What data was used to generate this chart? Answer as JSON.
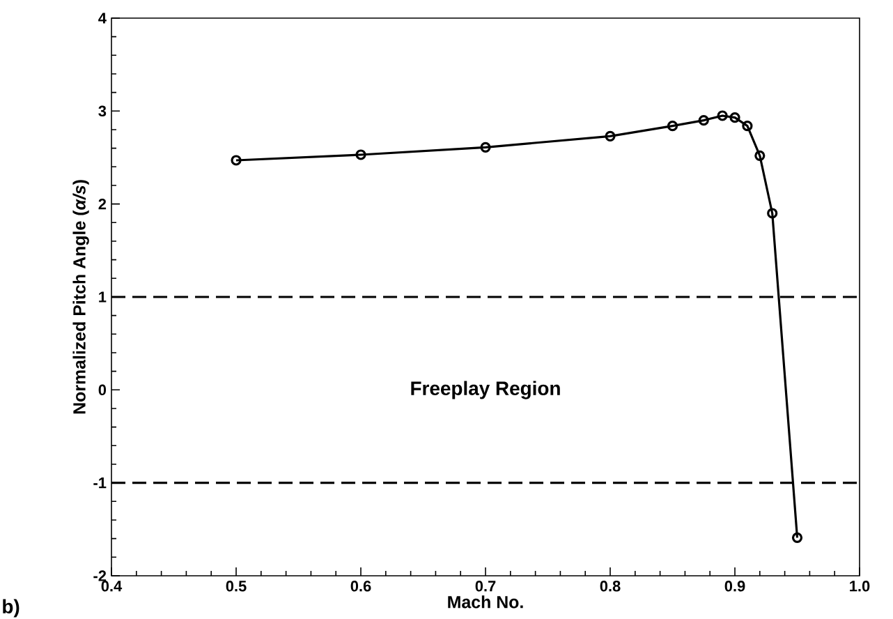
{
  "chart_data": {
    "type": "line",
    "xlabel": "Mach No.",
    "ylabel": "Normalized Pitch Angle (*α/s*)",
    "x": [
      0.5,
      0.6,
      0.7,
      0.8,
      0.85,
      0.875,
      0.89,
      0.9,
      0.91,
      0.92,
      0.93,
      0.95
    ],
    "series": [
      {
        "color": "#000000",
        "values": [
          2.47,
          2.53,
          2.61,
          2.73,
          2.84,
          2.9,
          2.95,
          2.93,
          2.84,
          2.52,
          1.9,
          -1.59
        ]
      }
    ],
    "xlim": [
      0.4,
      1.0
    ],
    "xticks": [
      0.4,
      0.5,
      0.6,
      0.7,
      0.8,
      0.9,
      {
        "value": 1.0,
        "label": "1.0"
      }
    ],
    "ylim": [
      -2,
      4
    ],
    "yticks": [
      -2,
      -1,
      0,
      1,
      2,
      3,
      4
    ],
    "ref_lines": [
      {
        "axis": "y",
        "value": 1,
        "line_style": "dashed",
        "color": "#000000"
      },
      {
        "axis": "y",
        "value": -1,
        "line_style": "dashed",
        "color": "#000000"
      }
    ],
    "annotations": [
      "Freeplay Region",
      "b)"
    ],
    "marker": "circle",
    "line_style": "solid",
    "grid": false
  }
}
